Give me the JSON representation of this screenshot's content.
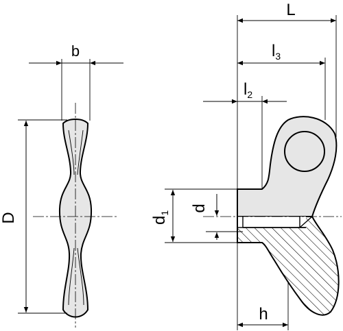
{
  "dimensions": {
    "b": "b",
    "D": "D",
    "L": "L",
    "l3": {
      "base": "l",
      "sub": "3"
    },
    "l2": {
      "base": "l",
      "sub": "2"
    },
    "d1": {
      "base": "d",
      "sub": "1"
    },
    "d": "d",
    "h": "h"
  },
  "colors": {
    "part_fill": "#e6e6e6",
    "line": "#000000",
    "hatch": "#000000",
    "background": "#ffffff"
  }
}
